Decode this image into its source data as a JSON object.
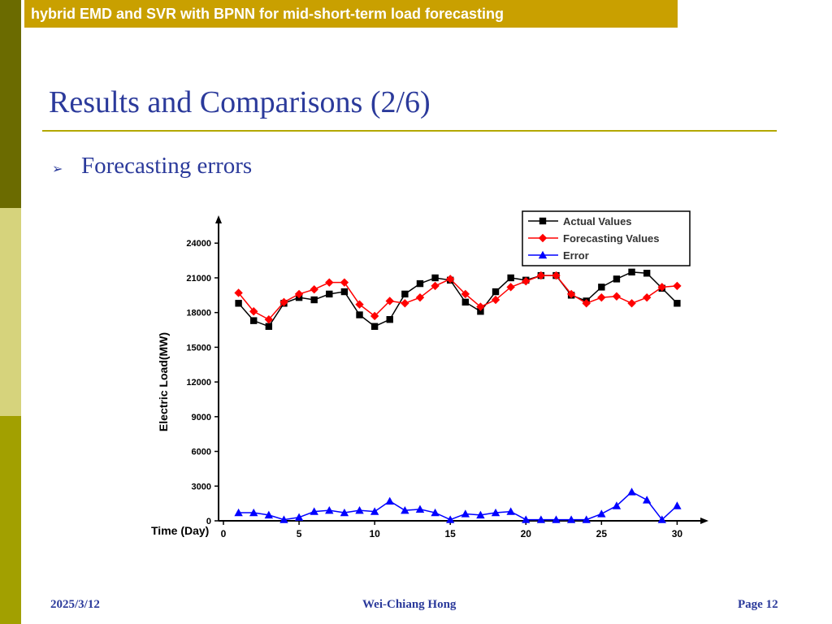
{
  "header": {
    "text": "hybrid EMD and SVR with BPNN for mid-short-term load forecasting"
  },
  "slide": {
    "title": "Results and Comparisons (2/6)",
    "bullet": "Forecasting errors"
  },
  "footer": {
    "date": "2025/3/12",
    "author": "Wei-Chiang Hong",
    "page": "Page 12"
  },
  "colors": {
    "accent_title": "#2b3a9b",
    "header_bar": "#c9a000",
    "actual": "#000000",
    "forecast": "#ff0000",
    "error": "#0000ff"
  },
  "chart_data": {
    "type": "line",
    "xlabel": "Time (Day)",
    "ylabel": "Electric Load(MW)",
    "xlim": [
      0,
      31
    ],
    "ylim": [
      0,
      25000
    ],
    "x_ticks": [
      0,
      5,
      10,
      15,
      20,
      25,
      30
    ],
    "x_tick_labels": [
      "0",
      "5",
      "10",
      "15",
      "20",
      "25",
      "30"
    ],
    "y_ticks": [
      0,
      3000,
      6000,
      9000,
      12000,
      15000,
      18000,
      21000,
      24000
    ],
    "y_tick_labels": [
      "0",
      "3000",
      "6000",
      "9000",
      "12000",
      "15000",
      "18000",
      "21000",
      "24000"
    ],
    "legend_position": "top-right",
    "grid": false,
    "x": [
      1,
      2,
      3,
      4,
      5,
      6,
      7,
      8,
      9,
      10,
      11,
      12,
      13,
      14,
      15,
      16,
      17,
      18,
      19,
      20,
      21,
      22,
      23,
      24,
      25,
      26,
      27,
      28,
      29,
      30
    ],
    "series": [
      {
        "name": "Actual Values",
        "marker": "square",
        "values": [
          18800,
          17300,
          16800,
          18800,
          19300,
          19100,
          19600,
          19800,
          17800,
          16800,
          17400,
          19600,
          20500,
          21000,
          20800,
          18900,
          18100,
          19800,
          21000,
          20800,
          21200,
          21200,
          19500,
          19000,
          20200,
          20900,
          21500,
          21400,
          20100,
          18800
        ]
      },
      {
        "name": "Forecasting Values",
        "marker": "diamond",
        "values": [
          19700,
          18100,
          17400,
          18900,
          19600,
          20000,
          20600,
          20600,
          18700,
          17700,
          19000,
          18800,
          19300,
          20300,
          20900,
          19600,
          18500,
          19100,
          20200,
          20700,
          21200,
          21200,
          19600,
          18800,
          19300,
          19400,
          18800,
          19300,
          20200,
          20300
        ]
      },
      {
        "name": "Error",
        "marker": "triangle",
        "values": [
          700,
          700,
          500,
          100,
          300,
          800,
          900,
          700,
          900,
          800,
          1700,
          900,
          1000,
          700,
          100,
          600,
          500,
          700,
          800,
          100,
          100,
          100,
          100,
          100,
          600,
          1300,
          2500,
          1800,
          100,
          1300
        ]
      }
    ]
  }
}
